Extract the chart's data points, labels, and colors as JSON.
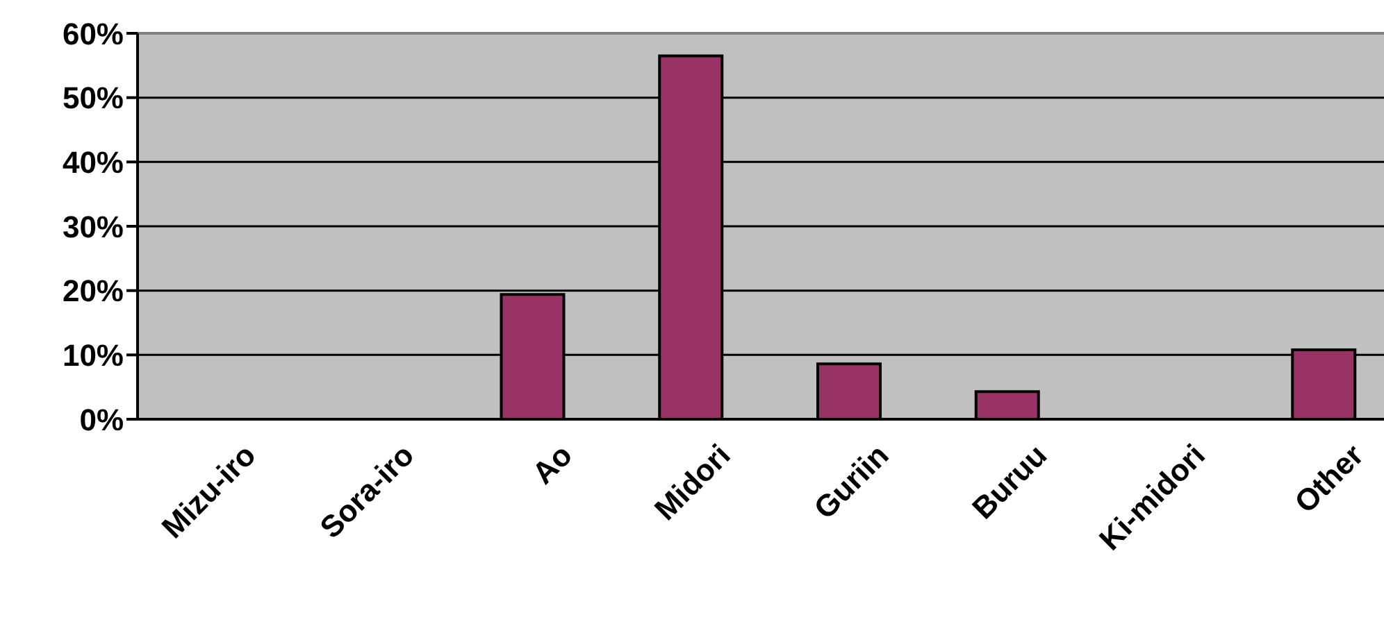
{
  "chart_data": {
    "type": "bar",
    "categories": [
      "Mizu-iro",
      "Sora-iro",
      "Ao",
      "Midori",
      "Guriin",
      "Buruu",
      "Ki-midori",
      "Other"
    ],
    "values": [
      null,
      null,
      19.4,
      56.5,
      8.6,
      4.3,
      null,
      10.8
    ],
    "color": "#993366",
    "ylim": [
      0,
      60
    ],
    "yticks": [
      {
        "value": 0,
        "label": "0%"
      },
      {
        "value": 10,
        "label": "10%"
      },
      {
        "value": 20,
        "label": "20%"
      },
      {
        "value": 30,
        "label": "30%"
      },
      {
        "value": 40,
        "label": "40%"
      },
      {
        "value": 50,
        "label": "50%"
      },
      {
        "value": 60,
        "label": "60%"
      }
    ],
    "grid": "y",
    "legend": false
  }
}
